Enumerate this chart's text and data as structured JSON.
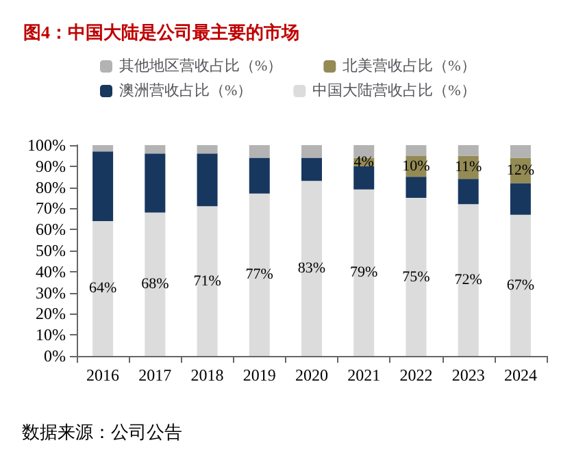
{
  "chart_data": {
    "type": "bar",
    "title": "图4：中国大陆是公司最主要的市场",
    "stacked": true,
    "legend": "top",
    "grid": false,
    "categories": [
      "2016",
      "2017",
      "2018",
      "2019",
      "2020",
      "2021",
      "2022",
      "2023",
      "2024"
    ],
    "series": [
      {
        "name": "中国大陆营收占比（%）",
        "color": "#dcdcdc",
        "values": [
          64,
          68,
          71,
          77,
          83,
          79,
          75,
          72,
          67
        ],
        "value_labels": [
          "64%",
          "68%",
          "71%",
          "77%",
          "83%",
          "79%",
          "75%",
          "72%",
          "67%"
        ]
      },
      {
        "name": "澳洲营收占比（%）",
        "color": "#17375e",
        "values": [
          33,
          28,
          25,
          17,
          11,
          11,
          10,
          12,
          15
        ]
      },
      {
        "name": "北美营收占比（%）",
        "color": "#948a54",
        "values": [
          null,
          null,
          null,
          null,
          null,
          4,
          10,
          11,
          12
        ],
        "value_labels": [
          null,
          null,
          null,
          null,
          null,
          "4%",
          "10%",
          "11%",
          "12%"
        ]
      },
      {
        "name": "其他地区营收占比（%）",
        "color": "#b3b3b3",
        "values": [
          3,
          4,
          4,
          6,
          6,
          6,
          5,
          5,
          6
        ]
      }
    ],
    "ylim": [
      0,
      100
    ],
    "yticks": [
      {
        "value": 0,
        "label": "0%"
      },
      {
        "value": 10,
        "label": "10%"
      },
      {
        "value": 20,
        "label": "20%"
      },
      {
        "value": 30,
        "label": "30%"
      },
      {
        "value": 40,
        "label": "40%"
      },
      {
        "value": 50,
        "label": "50%"
      },
      {
        "value": 60,
        "label": "60%"
      },
      {
        "value": 70,
        "label": "70%"
      },
      {
        "value": 80,
        "label": "80%"
      },
      {
        "value": 90,
        "label": "90%"
      },
      {
        "value": 100,
        "label": "100%"
      }
    ],
    "annotations": [
      "数据来源：公司公告"
    ]
  }
}
